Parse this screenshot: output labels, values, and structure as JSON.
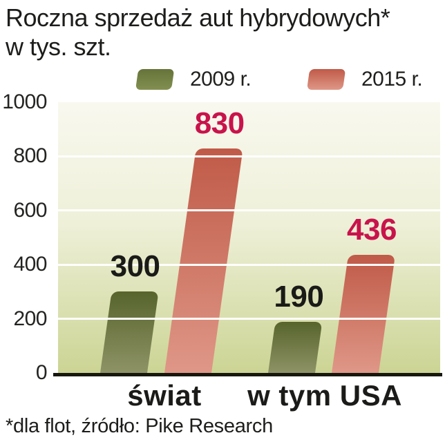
{
  "title": {
    "line1": "Roczna sprzedaż aut hybrydowych*",
    "line2": "w tys. szt."
  },
  "footer": {
    "note": "*dla flot, źródło: Pike Research"
  },
  "colors": {
    "plot_bg_top": "#f9f8ef",
    "plot_bg_mid": "#eef0d8",
    "plot_bg_bottom": "#ccd494",
    "grid": "#ffffff",
    "axis_line": "#17170f",
    "text": "#1d1d1b",
    "value_2015": "#c8134b"
  },
  "chart_data": {
    "type": "bar",
    "title": "Roczna sprzedaż aut hybrydowych* w tys. szt.",
    "categories": [
      "świat",
      "w tym USA"
    ],
    "series": [
      {
        "name": "2009 r.",
        "values": [
          300,
          190
        ],
        "color_top": "#57642c",
        "color_bottom": "#8e9366",
        "label_color": "#1a1a18"
      },
      {
        "name": "2015 r.",
        "values": [
          830,
          436
        ],
        "color_top": "#c05a48",
        "color_bottom": "#df9787",
        "label_color": "#c8134b"
      }
    ],
    "xlabel": "",
    "ylabel": "",
    "ylim": [
      0,
      1000
    ],
    "yticks": [
      0,
      200,
      400,
      600,
      800,
      1000
    ],
    "grid": true,
    "legend_position": "top"
  }
}
